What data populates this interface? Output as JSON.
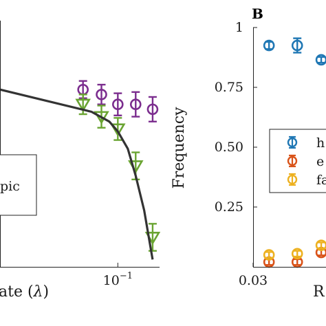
{
  "chart_data": [
    {
      "panel": "",
      "type": "scatter",
      "xscale": "log",
      "xlim": [
        0.0045,
        0.3
      ],
      "ylim": [
        0,
        1
      ],
      "xlabel": "ate (λ)",
      "ylabel": "",
      "xticks": [
        {
          "label": "10",
          "exp": "−1",
          "value": 0.1
        }
      ],
      "yticks": [],
      "legend": {
        "placement": "left",
        "entries": [
          {
            "label": "pic",
            "color": "#000000"
          }
        ]
      },
      "series": [
        {
          "name": "",
          "marker": "circle",
          "color": "#7b2d8e",
          "x": [
            0.04,
            0.065,
            0.1,
            0.16,
            0.25
          ],
          "y": [
            0.72,
            0.7,
            0.66,
            0.66,
            0.64
          ],
          "err": [
            0.035,
            0.04,
            0.045,
            0.05,
            0.05
          ]
        },
        {
          "name": "",
          "marker": "triangle-down",
          "color": "#6aa432",
          "x": [
            0.04,
            0.065,
            0.1,
            0.16,
            0.25
          ],
          "y": [
            0.66,
            0.61,
            0.56,
            0.41,
            0.12
          ],
          "err": [
            0.04,
            0.045,
            0.045,
            0.055,
            0.055
          ]
        },
        {
          "name": "",
          "marker": "line",
          "color": "#333333",
          "x": [
            0.0045,
            0.05,
            0.08,
            0.1,
            0.13,
            0.16,
            0.2,
            0.25
          ],
          "y": [
            0.72,
            0.63,
            0.59,
            0.55,
            0.48,
            0.37,
            0.23,
            0.03
          ],
          "err": []
        }
      ]
    },
    {
      "panel": "B",
      "type": "scatter",
      "xscale": "log",
      "xlim": [
        0.03,
        0.3
      ],
      "ylim": [
        0,
        1
      ],
      "xlabel": "R",
      "ylabel": "Frequency",
      "xticks": [
        {
          "label": "0.03",
          "exp": "",
          "value": 0.03
        }
      ],
      "yticks": [
        {
          "label": "0.25",
          "value": 0.25
        },
        {
          "label": "0.50",
          "value": 0.5
        },
        {
          "label": "0.75",
          "value": 0.75
        },
        {
          "label": "1",
          "value": 1.0
        }
      ],
      "legend": {
        "placement": "center-right",
        "entries": [
          {
            "label": "h",
            "color": "#1f77b4"
          },
          {
            "label": "e",
            "color": "#d95319"
          },
          {
            "label": "fa",
            "color": "#edb120"
          }
        ]
      },
      "series": [
        {
          "name": "h",
          "marker": "circle",
          "color": "#1f77b4",
          "x": [
            0.035,
            0.046,
            0.058
          ],
          "y": [
            0.925,
            0.925,
            0.865
          ],
          "err": [
            0.015,
            0.03,
            0.012
          ]
        },
        {
          "name": "e",
          "marker": "circle",
          "color": "#d95319",
          "x": [
            0.035,
            0.046,
            0.058
          ],
          "y": [
            0.02,
            0.02,
            0.06
          ],
          "err": [
            0.012,
            0.012,
            0.012
          ]
        },
        {
          "name": "fa",
          "marker": "circle",
          "color": "#edb120",
          "x": [
            0.035,
            0.046,
            0.058
          ],
          "y": [
            0.05,
            0.055,
            0.09
          ],
          "err": [
            0.012,
            0.012,
            0.012
          ]
        }
      ]
    }
  ]
}
